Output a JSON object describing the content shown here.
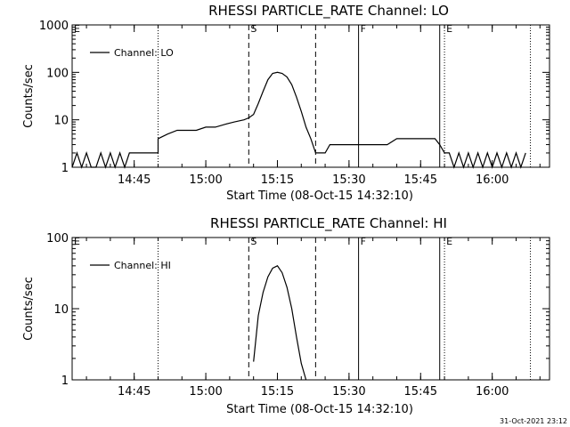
{
  "chart_data": [
    {
      "type": "line",
      "title": "RHESSI PARTICLE_RATE Channel: LO",
      "xlabel": "Start Time (08-Oct-15 14:32:10)",
      "ylabel": "Counts/sec",
      "yscale": "log",
      "ylim": [
        1,
        1000
      ],
      "yticks": [
        "1",
        "10",
        "100",
        "1000"
      ],
      "xlim": [
        "14:32",
        "16:12"
      ],
      "xticks": [
        "14:45",
        "15:00",
        "15:15",
        "15:30",
        "15:45",
        "16:00"
      ],
      "legend": {
        "position": "top-left",
        "label": "Channel: LO"
      },
      "markers": [
        {
          "label": "E",
          "time": "14:32",
          "style": "dotted"
        },
        {
          "label": "",
          "time": "14:50",
          "style": "dotted"
        },
        {
          "label": "S",
          "time": "15:09",
          "style": "dashed"
        },
        {
          "label": "",
          "time": "15:23",
          "style": "dashed"
        },
        {
          "label": "F",
          "time": "15:32",
          "style": "solid"
        },
        {
          "label": "",
          "time": "15:49",
          "style": "solid"
        },
        {
          "label": "E",
          "time": "15:50",
          "style": "dotted"
        },
        {
          "label": "",
          "time": "16:08",
          "style": "dotted"
        }
      ],
      "series": [
        {
          "name": "Channel: LO",
          "x": [
            "14:32",
            "14:33",
            "14:34",
            "14:35",
            "14:36",
            "14:37",
            "14:38",
            "14:39",
            "14:40",
            "14:41",
            "14:42",
            "14:43",
            "14:44",
            "14:45",
            "14:46",
            "14:47",
            "14:48",
            "14:49",
            "14:50",
            "14:50",
            "14:52",
            "14:54",
            "14:56",
            "14:58",
            "15:00",
            "15:02",
            "15:04",
            "15:06",
            "15:08",
            "15:09",
            "15:10",
            "15:11",
            "15:12",
            "15:13",
            "15:14",
            "15:15",
            "15:16",
            "15:17",
            "15:18",
            "15:19",
            "15:20",
            "15:21",
            "15:22",
            "15:23",
            "15:24",
            "15:25",
            "15:26",
            "15:28",
            "15:30",
            "15:32",
            "15:34",
            "15:36",
            "15:38",
            "15:40",
            "15:42",
            "15:44",
            "15:46",
            "15:48",
            "15:49",
            "15:50",
            "15:51",
            "15:52",
            "15:53",
            "15:54",
            "15:55",
            "15:56",
            "15:57",
            "15:58",
            "15:59",
            "16:00",
            "16:01",
            "16:02",
            "16:03",
            "16:04",
            "16:05",
            "16:06",
            "16:07"
          ],
          "y": [
            1,
            2,
            1,
            2,
            1,
            1,
            2,
            1,
            2,
            1,
            2,
            1,
            2,
            2,
            2,
            2,
            2,
            2,
            2,
            4,
            5,
            6,
            6,
            6,
            7,
            7,
            8,
            9,
            10,
            11,
            13,
            22,
            40,
            70,
            95,
            100,
            95,
            80,
            55,
            30,
            15,
            7,
            4,
            2,
            2,
            2,
            3,
            3,
            3,
            3,
            3,
            3,
            3,
            4,
            4,
            4,
            4,
            4,
            3,
            2,
            2,
            1,
            2,
            1,
            2,
            1,
            2,
            1,
            2,
            1,
            2,
            1,
            2,
            1,
            2,
            1,
            2
          ]
        }
      ]
    },
    {
      "type": "line",
      "title": "RHESSI PARTICLE_RATE Channel: HI",
      "xlabel": "Start Time (08-Oct-15 14:32:10)",
      "ylabel": "Counts/sec",
      "yscale": "log",
      "ylim": [
        1,
        100
      ],
      "yticks": [
        "1",
        "10",
        "100"
      ],
      "xlim": [
        "14:32",
        "16:12"
      ],
      "xticks": [
        "14:45",
        "15:00",
        "15:15",
        "15:30",
        "15:45",
        "16:00"
      ],
      "legend": {
        "position": "top-left",
        "label": "Channel: HI"
      },
      "markers": [
        {
          "label": "E",
          "time": "14:32",
          "style": "dotted"
        },
        {
          "label": "",
          "time": "14:50",
          "style": "dotted"
        },
        {
          "label": "S",
          "time": "15:09",
          "style": "dashed"
        },
        {
          "label": "",
          "time": "15:23",
          "style": "dashed"
        },
        {
          "label": "F",
          "time": "15:32",
          "style": "solid"
        },
        {
          "label": "",
          "time": "15:49",
          "style": "solid"
        },
        {
          "label": "E",
          "time": "15:50",
          "style": "dotted"
        },
        {
          "label": "",
          "time": "16:08",
          "style": "dotted"
        }
      ],
      "series": [
        {
          "name": "Channel: HI",
          "x": [
            "15:10",
            "15:11",
            "15:12",
            "15:13",
            "15:14",
            "15:15",
            "15:16",
            "15:17",
            "15:18",
            "15:19",
            "15:20",
            "15:21"
          ],
          "y": [
            1.8,
            8,
            17,
            28,
            37,
            40,
            32,
            20,
            10,
            4,
            1.7,
            1
          ]
        }
      ]
    }
  ],
  "timestamp": "31-Oct-2021 23:12"
}
